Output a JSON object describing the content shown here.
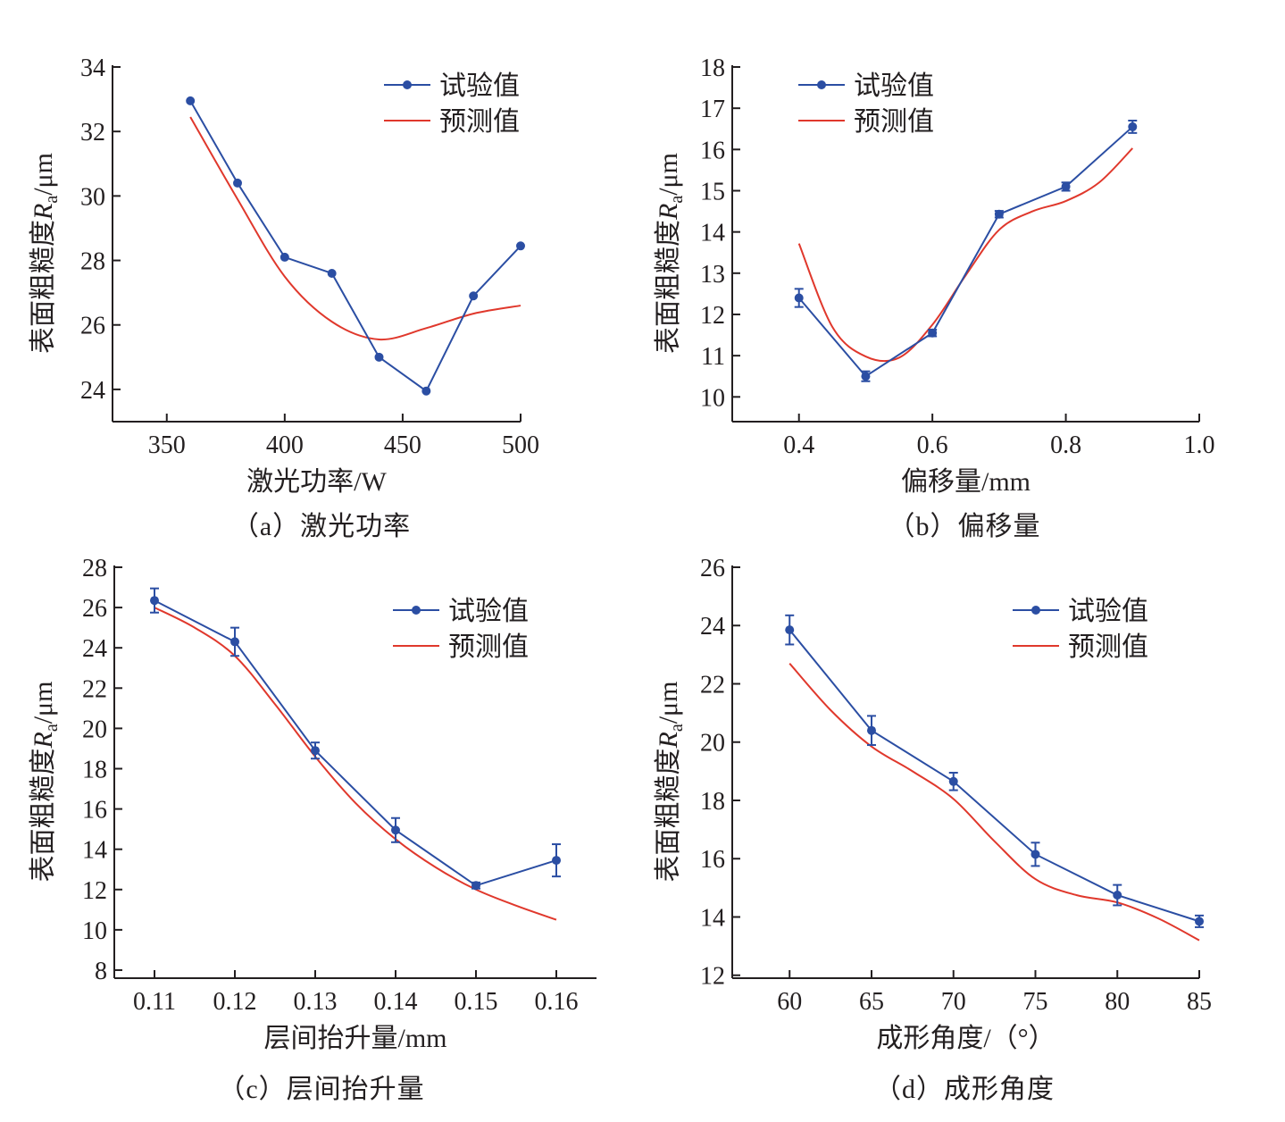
{
  "colors": {
    "experimental": "#2b4ea3",
    "predicted": "#e0382c",
    "axis": "#231f20"
  },
  "chart_data": [
    {
      "id": "a",
      "type": "line",
      "caption": "（a）激光功率",
      "xlabel": "激光功率/W",
      "ylabel_main": "表面粗糙度",
      "ylabel_var": "R",
      "ylabel_sub": "a",
      "ylabel_unit": "/μm",
      "xlim": [
        327,
        500
      ],
      "ylim": [
        23,
        34
      ],
      "xticks": [
        350,
        400,
        450,
        500
      ],
      "xtick_labels": [
        "350",
        "400",
        "450",
        "500"
      ],
      "yticks": [
        24,
        26,
        28,
        30,
        32,
        34
      ],
      "ytick_labels": [
        "24",
        "26",
        "28",
        "30",
        "32",
        "34"
      ],
      "legend_position": "top-right",
      "series": [
        {
          "name": "试验值",
          "style": "line-marker",
          "x": [
            360,
            380,
            400,
            420,
            440,
            460,
            480,
            500
          ],
          "y": [
            32.95,
            30.4,
            28.1,
            27.6,
            25.0,
            23.95,
            26.9,
            28.45
          ],
          "err": []
        },
        {
          "name": "预测值",
          "style": "smooth",
          "x": [
            360,
            380,
            400,
            420,
            440,
            460,
            480,
            500
          ],
          "y": [
            32.45,
            29.9,
            27.5,
            26.1,
            25.55,
            25.9,
            26.35,
            26.6
          ]
        }
      ]
    },
    {
      "id": "b",
      "type": "line",
      "caption": "（b）偏移量",
      "xlabel": "偏移量/mm",
      "ylabel_main": "表面粗糙度",
      "ylabel_var": "R",
      "ylabel_sub": "a",
      "ylabel_unit": "/μm",
      "xlim": [
        0.3,
        1.0
      ],
      "ylim": [
        9.4,
        18
      ],
      "xticks": [
        0.4,
        0.6,
        0.8,
        1.0
      ],
      "xtick_labels": [
        "0.4",
        "0.6",
        "0.8",
        "1.0"
      ],
      "yticks": [
        10,
        11,
        12,
        13,
        14,
        15,
        16,
        17,
        18
      ],
      "ytick_labels": [
        "10",
        "11",
        "12",
        "13",
        "14",
        "15",
        "16",
        "17",
        "18"
      ],
      "legend_position": "top-left",
      "series": [
        {
          "name": "试验值",
          "style": "line-marker",
          "x": [
            0.4,
            0.5,
            0.6,
            0.7,
            0.8,
            0.9
          ],
          "y": [
            12.4,
            10.5,
            11.55,
            14.43,
            15.1,
            16.55
          ],
          "err": [
            0.22,
            0.12,
            0.08,
            0.08,
            0.1,
            0.15
          ]
        },
        {
          "name": "预测值",
          "style": "smooth",
          "x": [
            0.4,
            0.45,
            0.5,
            0.55,
            0.6,
            0.65,
            0.7,
            0.75,
            0.8,
            0.85,
            0.9
          ],
          "y": [
            13.72,
            11.7,
            10.98,
            10.95,
            11.75,
            12.95,
            14.05,
            14.5,
            14.75,
            15.2,
            16.03
          ]
        }
      ]
    },
    {
      "id": "c",
      "type": "line",
      "caption": "（c）层间抬升量",
      "xlabel": "层间抬升量/mm",
      "ylabel_main": "表面粗糙度",
      "ylabel_var": "R",
      "ylabel_sub": "a",
      "ylabel_unit": "/μm",
      "xlim": [
        0.105,
        0.165
      ],
      "ylim": [
        7.6,
        28
      ],
      "xticks": [
        0.11,
        0.12,
        0.13,
        0.14,
        0.15,
        0.16
      ],
      "xtick_labels": [
        "0.11",
        "0.12",
        "0.13",
        "0.14",
        "0.15",
        "0.16"
      ],
      "yticks": [
        8,
        10,
        12,
        14,
        16,
        18,
        20,
        22,
        24,
        26,
        28
      ],
      "ytick_labels": [
        "8",
        "10",
        "12",
        "14",
        "16",
        "18",
        "20",
        "22",
        "24",
        "26",
        "28"
      ],
      "legend_position": "top-right",
      "series": [
        {
          "name": "试验值",
          "style": "line-marker",
          "x": [
            0.11,
            0.12,
            0.13,
            0.14,
            0.15,
            0.16
          ],
          "y": [
            26.35,
            24.3,
            18.9,
            14.95,
            12.2,
            13.45
          ],
          "err": [
            0.6,
            0.7,
            0.4,
            0.6,
            0.15,
            0.8
          ]
        },
        {
          "name": "预测值",
          "style": "smooth",
          "x": [
            0.11,
            0.115,
            0.12,
            0.125,
            0.13,
            0.135,
            0.14,
            0.145,
            0.15,
            0.155,
            0.16
          ],
          "y": [
            26.0,
            25.0,
            23.6,
            21.2,
            18.6,
            16.3,
            14.5,
            13.1,
            12.0,
            11.2,
            10.5
          ]
        }
      ]
    },
    {
      "id": "d",
      "type": "line",
      "caption": "（d）成形角度",
      "xlabel": "成形角度/（°）",
      "ylabel_main": "表面粗糙度",
      "ylabel_var": "R",
      "ylabel_sub": "a",
      "ylabel_unit": "/μm",
      "xlim": [
        56.5,
        85
      ],
      "ylim": [
        11.9,
        26
      ],
      "xticks": [
        60,
        65,
        70,
        75,
        80,
        85
      ],
      "xtick_labels": [
        "60",
        "65",
        "70",
        "75",
        "80",
        "85"
      ],
      "yticks": [
        12,
        14,
        16,
        18,
        20,
        22,
        24,
        26
      ],
      "ytick_labels": [
        "12",
        "14",
        "16",
        "18",
        "20",
        "22",
        "24",
        "26"
      ],
      "legend_position": "top-right",
      "series": [
        {
          "name": "试验值",
          "style": "line-marker",
          "x": [
            60,
            65,
            70,
            75,
            80,
            85
          ],
          "y": [
            23.85,
            20.4,
            18.65,
            16.15,
            14.75,
            13.85
          ],
          "err": [
            0.5,
            0.5,
            0.3,
            0.4,
            0.35,
            0.2
          ]
        },
        {
          "name": "预测值",
          "style": "smooth",
          "x": [
            60,
            62.5,
            65,
            67.5,
            70,
            72.5,
            75,
            77.5,
            80,
            82.5,
            85
          ],
          "y": [
            22.7,
            21.1,
            19.85,
            19.0,
            18.05,
            16.6,
            15.3,
            14.75,
            14.5,
            13.95,
            13.2
          ]
        }
      ]
    }
  ]
}
